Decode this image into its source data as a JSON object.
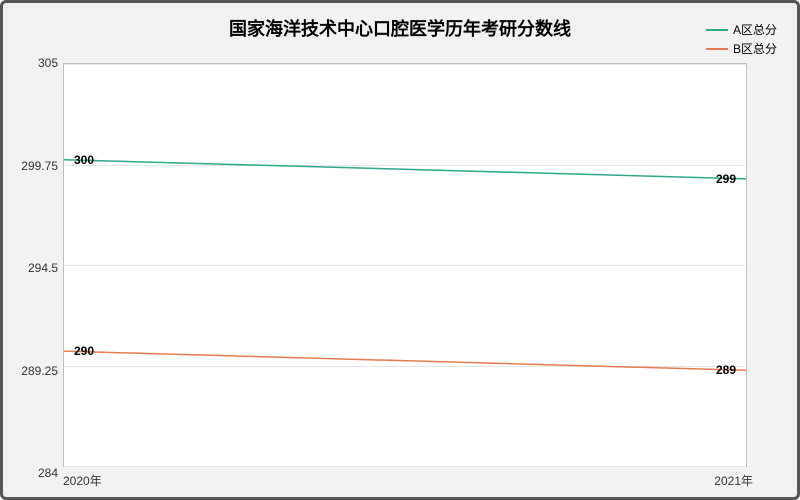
{
  "chart": {
    "type": "line",
    "title": "国家海洋技术中心口腔医学历年考研分数线",
    "title_fontsize": 18,
    "background_color": "#f2f2f2",
    "plot_background": "#ffffff",
    "border_color": "#555555",
    "grid_color": "#e6e6e6",
    "axis_line_color": "#bcbcbc",
    "tick_fontsize": 12,
    "label_fontsize": 12,
    "x": {
      "categories": [
        "2020年",
        "2021年"
      ],
      "positions_pct": [
        0,
        100
      ]
    },
    "y": {
      "min": 284,
      "max": 305,
      "ticks": [
        284,
        289.25,
        294.5,
        299.75,
        305
      ]
    },
    "series": [
      {
        "name": "A区总分",
        "color": "#2ca88a",
        "line_width": 1.5,
        "values": [
          300,
          299
        ],
        "labels": [
          "300",
          "299"
        ]
      },
      {
        "name": "B区总分",
        "color": "#e77a4f",
        "line_width": 1.5,
        "values": [
          290,
          289
        ],
        "labels": [
          "290",
          "289"
        ]
      }
    ],
    "legend": {
      "position": "top-right",
      "fontsize": 12
    }
  }
}
